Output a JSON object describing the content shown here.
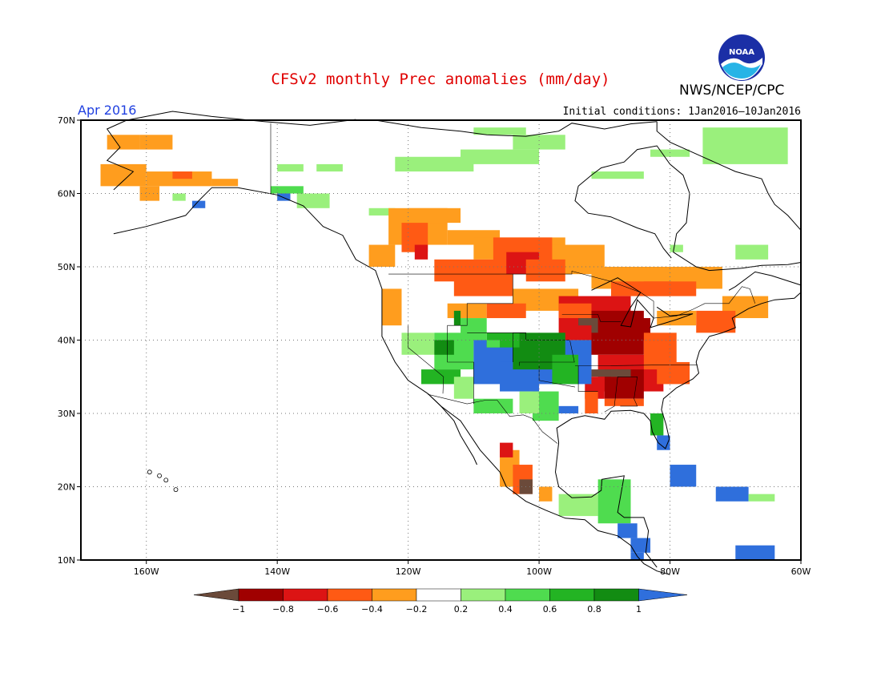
{
  "title": "CFSv2 monthly Prec anomalies (mm/day)",
  "subtitle": "Apr 2016",
  "initial_conditions": "Initial conditions: 1Jan2016–10Jan2016",
  "organization": "NWS/NCEP/CPC",
  "logo_text": "NOAA",
  "map": {
    "lat_labels": [
      "70N",
      "60N",
      "50N",
      "40N",
      "30N",
      "20N",
      "10N"
    ],
    "lon_labels": [
      "160W",
      "140W",
      "120W",
      "100W",
      "80W",
      "60W"
    ],
    "lat_range": [
      10,
      70
    ],
    "lon_range": [
      -170,
      -60
    ],
    "grid": "dotted"
  },
  "colorbar": {
    "tick_labels": [
      "−1",
      "−0.8",
      "−0.6",
      "−0.4",
      "−0.2",
      "0.2",
      "0.4",
      "0.6",
      "0.8",
      "1"
    ],
    "colors": [
      "#6b4a3a",
      "#a00000",
      "#dc1414",
      "#ff5a14",
      "#ff9d1e",
      "#ffffff",
      "#9af07c",
      "#4fdc4f",
      "#23b423",
      "#128c12",
      "#2f6fdc"
    ]
  },
  "legend_categories": {
    "lt_-1": "#6b4a3a",
    "-1_-0.8": "#a00000",
    "-0.8_-0.6": "#dc1414",
    "-0.6_-0.4": "#ff5a14",
    "-0.4_-0.2": "#ff9d1e",
    "-0.2_0.2": "#ffffff",
    "0.2_0.4": "#9af07c",
    "0.4_0.6": "#4fdc4f",
    "0.6_0.8": "#23b423",
    "0.8_1": "#128c12",
    "gt_1": "#2f6fdc"
  }
}
